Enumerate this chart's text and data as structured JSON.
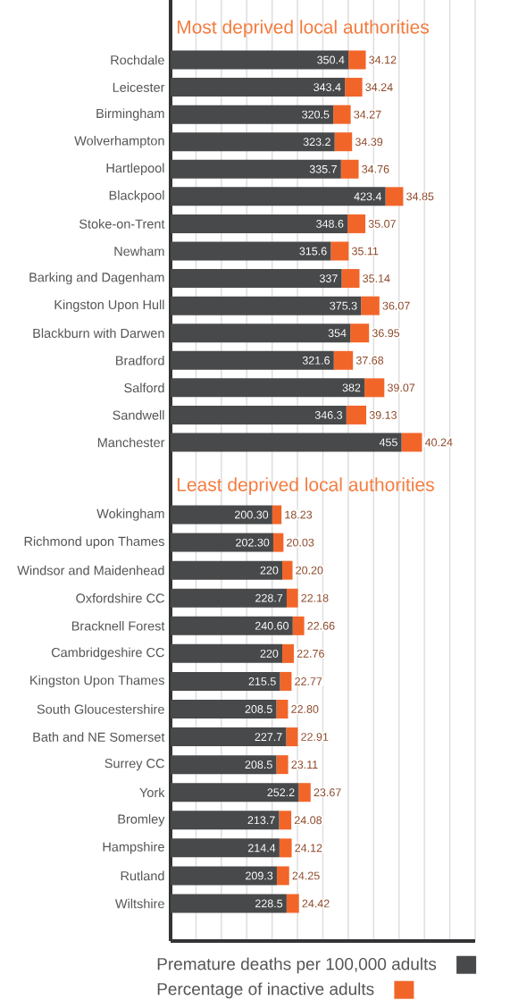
{
  "chart_data": [
    {
      "type": "bar",
      "orientation": "horizontal",
      "stacked": true,
      "title": "Most deprived local authorities",
      "categories": [
        "Rochdale",
        "Leicester",
        "Birmingham",
        "Wolverhampton",
        "Hartlepool",
        "Blackpool",
        "Stoke-on-Trent",
        "Newham",
        "Barking and Dagenham",
        "Kingston Upon Hull",
        "Blackburn with Darwen",
        "Bradford",
        "Salford",
        "Sandwell",
        "Manchester"
      ],
      "series": [
        {
          "color": "#48494b",
          "values": [
            350.4,
            343.4,
            320.5,
            323.2,
            335.7,
            423.4,
            348.6,
            315.6,
            337,
            375.3,
            354,
            321.6,
            382,
            346.3,
            455
          ],
          "value_labels": [
            "350.4",
            "343.4",
            "320.5",
            "323.2",
            "335.7",
            "423.4",
            "348.6",
            "315.6",
            "337",
            "375.3",
            "354",
            "321.6",
            "382",
            "346.3",
            "455"
          ]
        },
        {
          "color": "#f26529",
          "values": [
            34.12,
            34.24,
            34.27,
            34.39,
            34.76,
            34.85,
            35.07,
            35.11,
            35.14,
            36.07,
            36.95,
            37.68,
            39.07,
            39.13,
            40.24
          ],
          "value_labels": [
            "34.12",
            "34.24",
            "34.27",
            "34.39",
            "34.76",
            "34.85",
            "35.07",
            "35.11",
            "35.14",
            "36.07",
            "36.95",
            "37.68",
            "39.07",
            "39.13",
            "40.24"
          ]
        }
      ],
      "xlim": [
        0,
        600
      ],
      "xticks": [
        {
          "value": 0,
          "label": null
        },
        {
          "value": 50,
          "label": null
        },
        {
          "value": 100,
          "label": null
        },
        {
          "value": 150,
          "label": null
        },
        {
          "value": 200,
          "label": null
        },
        {
          "value": 250,
          "label": null
        },
        {
          "value": 300,
          "label": null
        },
        {
          "value": 350,
          "label": null
        },
        {
          "value": 400,
          "label": null
        },
        {
          "value": 450,
          "label": null
        },
        {
          "value": 500,
          "label": null
        },
        {
          "value": 550,
          "label": null
        },
        {
          "value": 600,
          "label": null
        }
      ],
      "grid": "x",
      "tick_labels": "y"
    },
    {
      "type": "bar",
      "orientation": "horizontal",
      "stacked": true,
      "title": "Least deprived local authorities",
      "categories": [
        "Wokingham",
        "Richmond upon Thames",
        "Windsor and Maidenhead",
        "Oxfordshire CC",
        "Bracknell Forest",
        "Cambridgeshire CC",
        "Kingston Upon Thames",
        "South Gloucestershire",
        "Bath and NE Somerset",
        "Surrey CC",
        "York",
        "Bromley",
        "Hampshire",
        "Rutland",
        "Wiltshire"
      ],
      "series": [
        {
          "name": "Premature deaths per 100,000 adults",
          "color": "#48494b",
          "values": [
            200.3,
            202.3,
            220,
            228.7,
            240.6,
            220,
            215.5,
            208.5,
            227.7,
            208.5,
            252.2,
            213.7,
            214.4,
            209.3,
            228.5
          ],
          "value_labels": [
            "200.30",
            "202.30",
            "220",
            "228.7",
            "240.60",
            "220",
            "215.5",
            "208.5",
            "227.7",
            "208.5",
            "252.2",
            "213.7",
            "214.4",
            "209.3",
            "228.5"
          ]
        },
        {
          "name": "Percentage of inactive adults",
          "color": "#f26529",
          "values": [
            18.23,
            20.03,
            20.2,
            22.18,
            22.66,
            22.76,
            22.77,
            22.8,
            22.91,
            23.11,
            23.67,
            24.08,
            24.12,
            24.25,
            24.42
          ],
          "value_labels": [
            "18.23",
            "20.03",
            "20.20",
            "22.18",
            "22.66",
            "22.76",
            "22.77",
            "22.80",
            "22.91",
            "23.11",
            "23.67",
            "24.08",
            "24.12",
            "24.25",
            "24.42"
          ]
        }
      ],
      "xlim": [
        0,
        600
      ],
      "xticks": [
        {
          "value": 0,
          "label": null
        },
        {
          "value": 50,
          "label": null
        },
        {
          "value": 100,
          "label": null
        },
        {
          "value": 150,
          "label": null
        },
        {
          "value": 200,
          "label": null
        },
        {
          "value": 250,
          "label": null
        },
        {
          "value": 300,
          "label": null
        },
        {
          "value": 350,
          "label": null
        },
        {
          "value": 400,
          "label": null
        },
        {
          "value": 450,
          "label": null
        },
        {
          "value": 500,
          "label": null
        },
        {
          "value": 550,
          "label": null
        },
        {
          "value": 600,
          "label": null
        }
      ],
      "grid": "x",
      "tick_labels": "y",
      "legend": "bottom"
    }
  ]
}
